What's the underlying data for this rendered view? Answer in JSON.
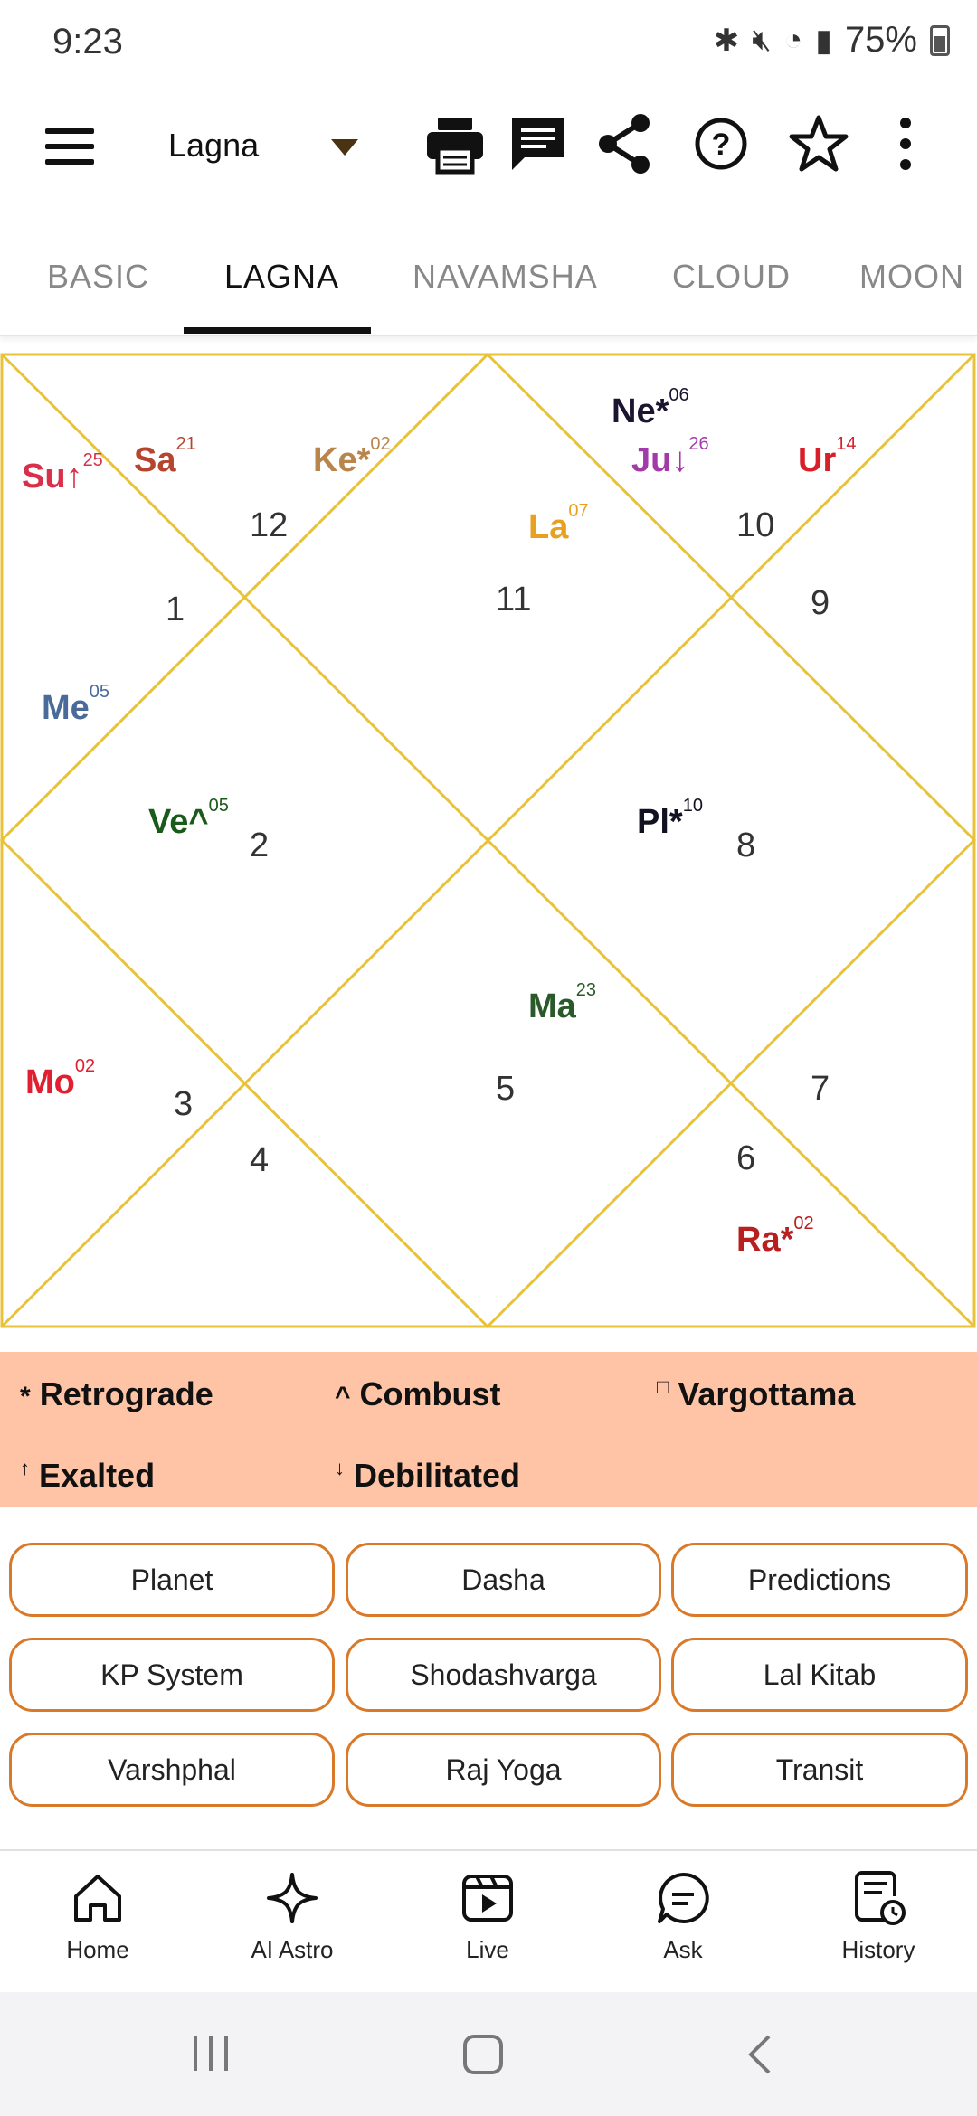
{
  "status_bar": {
    "time": "9:23",
    "battery": "75%"
  },
  "app_bar": {
    "dropdown_value": "Lagna",
    "icons": [
      "menu-icon",
      "print-icon",
      "message-icon",
      "share-icon",
      "help-icon",
      "star-icon",
      "more-vert-icon"
    ]
  },
  "tabs": [
    {
      "label": "BASIC"
    },
    {
      "label": "LAGNA",
      "active": true
    },
    {
      "label": "NAVAMSHA"
    },
    {
      "label": "CLOUD"
    },
    {
      "label": "MOON"
    }
  ],
  "chart": {
    "line_color": "#e8c33a",
    "houses": [
      "12",
      "1",
      "11",
      "10",
      "9",
      "2",
      "8",
      "3",
      "4",
      "5",
      "6",
      "7"
    ],
    "planets": [
      {
        "name": "Su",
        "mark": "↑",
        "deg": "25",
        "color": "#d8304a"
      },
      {
        "name": "Sa",
        "mark": "",
        "deg": "21",
        "color": "#b5452e"
      },
      {
        "name": "Ke",
        "mark": "*",
        "deg": "02",
        "color": "#b8864c"
      },
      {
        "name": "Ne",
        "mark": "*",
        "deg": "06",
        "color": "#1c1530"
      },
      {
        "name": "Ju",
        "mark": "↓",
        "deg": "26",
        "color": "#a23aa8"
      },
      {
        "name": "Ur",
        "mark": "",
        "deg": "14",
        "color": "#d8202a"
      },
      {
        "name": "La",
        "mark": "",
        "deg": "07",
        "color": "#e8a020"
      },
      {
        "name": "Me",
        "mark": "",
        "deg": "05",
        "color": "#4a6a9a"
      },
      {
        "name": "Ve",
        "mark": "^",
        "deg": "05",
        "color": "#1a5a1a"
      },
      {
        "name": "Pl",
        "mark": "*",
        "deg": "10",
        "color": "#111122"
      },
      {
        "name": "Ma",
        "mark": "",
        "deg": "23",
        "color": "#2a5a2a"
      },
      {
        "name": "Mo",
        "mark": "",
        "deg": "02",
        "color": "#e02030"
      },
      {
        "name": "Ra",
        "mark": "*",
        "deg": "02",
        "color": "#b82020"
      }
    ]
  },
  "legend": {
    "retrograde": {
      "symbol": "*",
      "label": "Retrograde"
    },
    "combust": {
      "symbol": "^",
      "label": "Combust"
    },
    "vargottama": {
      "symbol": "□",
      "label": "Vargottama"
    },
    "exalted": {
      "symbol": "↑",
      "label": "Exalted"
    },
    "debilitated": {
      "symbol": "↓",
      "label": "Debilitated"
    }
  },
  "buttons": [
    {
      "label": "Planet"
    },
    {
      "label": "Dasha"
    },
    {
      "label": "Predictions"
    },
    {
      "label": "KP System"
    },
    {
      "label": "Shodashvarga"
    },
    {
      "label": "Lal Kitab"
    },
    {
      "label": "Varshphal"
    },
    {
      "label": "Raj Yoga"
    },
    {
      "label": "Transit"
    }
  ],
  "bottom_nav": [
    {
      "label": "Home",
      "icon": "home-icon"
    },
    {
      "label": "AI Astro",
      "icon": "sparkle-icon"
    },
    {
      "label": "Live",
      "icon": "live-video-icon"
    },
    {
      "label": "Ask",
      "icon": "chat-icon"
    },
    {
      "label": "History",
      "icon": "history-icon"
    }
  ],
  "accent_color": "#d97a2b",
  "legend_bg": "#ffc4a6"
}
